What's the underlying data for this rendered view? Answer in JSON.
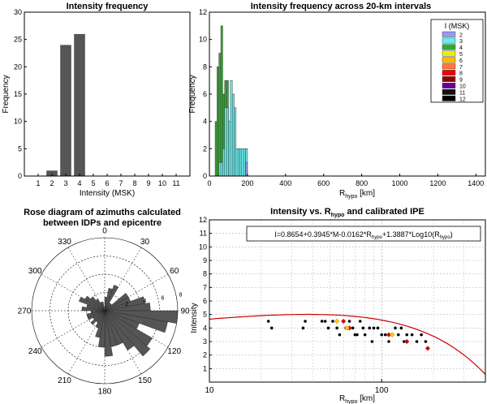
{
  "chart_data": [
    {
      "type": "bar",
      "title": "Intensity frequency",
      "xlabel": "Intensity (MSK)",
      "ylabel": "Frequency",
      "categories": [
        "1",
        "2",
        "3",
        "4",
        "5",
        "6",
        "7",
        "8",
        "9",
        "10",
        "11"
      ],
      "values": [
        0,
        1,
        24,
        26,
        0,
        0,
        0,
        0,
        0,
        0,
        0
      ],
      "ylim": [
        0,
        30
      ],
      "yticks": [
        "0",
        "5",
        "10",
        "15",
        "20",
        "25",
        "30"
      ],
      "color": "#555555"
    },
    {
      "type": "bar",
      "title": "Intensity frequency across 20-km intervals",
      "xlabel_main": "R",
      "xlabel_sub": "hypo",
      "xlabel_unit": " [km]",
      "ylabel": "Frequency",
      "xlim": [
        0,
        1450
      ],
      "ylim": [
        0,
        12
      ],
      "xticks": [
        "0",
        "200",
        "400",
        "600",
        "800",
        "1000",
        "1200",
        "1400"
      ],
      "yticks": [
        "0",
        "2",
        "4",
        "6",
        "8",
        "10",
        "12"
      ],
      "legend_title": "I (MSK)",
      "legend": [
        {
          "label": "2",
          "color": "#9999ee"
        },
        {
          "label": "3",
          "color": "#66eeee"
        },
        {
          "label": "4",
          "color": "#33aa33"
        },
        {
          "label": "5",
          "color": "#eeee00"
        },
        {
          "label": "6",
          "color": "#ffbb00"
        },
        {
          "label": "7",
          "color": "#ff7744"
        },
        {
          "label": "8",
          "color": "#ee0000"
        },
        {
          "label": "9",
          "color": "#990000"
        },
        {
          "label": "10",
          "color": "#660099"
        },
        {
          "label": "11",
          "color": "#111111"
        },
        {
          "label": "12",
          "color": "#000000"
        }
      ],
      "series": [
        {
          "name": "4",
          "color": "#33aa33",
          "x": [
            40,
            50,
            60,
            70,
            80,
            90,
            100,
            110
          ],
          "values": [
            4,
            8,
            9,
            11,
            6,
            7,
            7,
            1
          ]
        },
        {
          "name": "3",
          "color": "#66eeee",
          "x": [
            60,
            70,
            80,
            90,
            100,
            110,
            120,
            130,
            140,
            150,
            160,
            170,
            180,
            190,
            200
          ],
          "values": [
            1,
            1,
            2,
            5,
            5,
            4,
            7,
            6,
            5,
            2,
            2,
            2,
            2,
            2,
            2
          ]
        },
        {
          "name": "2",
          "color": "#9999ee",
          "x": [
            200
          ],
          "values": [
            1
          ]
        }
      ]
    },
    {
      "type": "rose",
      "title": "Rose diagram of azimuths calculated",
      "title2": "between  IDPs and epicentre",
      "angle_labels": [
        "0",
        "30",
        "60",
        "90",
        "120",
        "150",
        "180",
        "210",
        "240",
        "270",
        "300",
        "330"
      ],
      "radial_labels": [
        "2",
        "4",
        "6",
        "8"
      ],
      "rmax": 8,
      "sector_width": 10,
      "petals": [
        {
          "az": 5,
          "r": 1.5
        },
        {
          "az": 15,
          "r": 2.5
        },
        {
          "az": 25,
          "r": 3
        },
        {
          "az": 35,
          "r": 1
        },
        {
          "az": 45,
          "r": 1
        },
        {
          "az": 55,
          "r": 3
        },
        {
          "az": 65,
          "r": 3
        },
        {
          "az": 75,
          "r": 4.5
        },
        {
          "az": 85,
          "r": 5
        },
        {
          "az": 95,
          "r": 8
        },
        {
          "az": 105,
          "r": 7
        },
        {
          "az": 115,
          "r": 4
        },
        {
          "az": 125,
          "r": 6
        },
        {
          "az": 135,
          "r": 6.5
        },
        {
          "az": 145,
          "r": 5
        },
        {
          "az": 155,
          "r": 4
        },
        {
          "az": 165,
          "r": 4
        },
        {
          "az": 175,
          "r": 5
        },
        {
          "az": 185,
          "r": 4
        },
        {
          "az": 195,
          "r": 3
        },
        {
          "az": 205,
          "r": 2
        },
        {
          "az": 215,
          "r": 1.5
        },
        {
          "az": 225,
          "r": 2
        },
        {
          "az": 235,
          "r": 1.5
        },
        {
          "az": 245,
          "r": 2
        },
        {
          "az": 255,
          "r": 2
        },
        {
          "az": 265,
          "r": 1.5
        },
        {
          "az": 275,
          "r": 2.5
        },
        {
          "az": 285,
          "r": 2
        },
        {
          "az": 295,
          "r": 3
        },
        {
          "az": 305,
          "r": 2.5
        },
        {
          "az": 315,
          "r": 2
        },
        {
          "az": 325,
          "r": 1.5
        },
        {
          "az": 335,
          "r": 1
        },
        {
          "az": 345,
          "r": 1
        }
      ]
    },
    {
      "type": "scatter",
      "title_main": "Intensity vs. R",
      "title_sub": "hypo",
      "title_rest": " and calibrated IPE",
      "xlabel_main": "R",
      "xlabel_sub": "hypo",
      "xlabel_unit": " [km]",
      "ylabel": "Intensity",
      "xscale": "log",
      "xlim": [
        10,
        400
      ],
      "ylim": [
        0,
        12
      ],
      "xticks": [
        "10",
        "100"
      ],
      "yticks": [
        "1",
        "2",
        "3",
        "4",
        "5",
        "6",
        "7",
        "8",
        "9",
        "10",
        "11",
        "12"
      ],
      "equation_text_1": "I=0.8654+0.3945*M-0.0162*R",
      "equation_sub_1": "hypo",
      "equation_text_2": "+1.3887*Log10(R",
      "equation_sub_2": "hypo",
      "equation_text_3": ")",
      "curve_color": "#cc0000",
      "points_black": [
        {
          "x": 22,
          "y": 4.5
        },
        {
          "x": 23,
          "y": 4
        },
        {
          "x": 35,
          "y": 4
        },
        {
          "x": 36,
          "y": 4.5
        },
        {
          "x": 45,
          "y": 4.5
        },
        {
          "x": 47,
          "y": 4.5
        },
        {
          "x": 49,
          "y": 4
        },
        {
          "x": 52,
          "y": 4.5
        },
        {
          "x": 55,
          "y": 4
        },
        {
          "x": 57,
          "y": 3.5
        },
        {
          "x": 60,
          "y": 4.5
        },
        {
          "x": 62,
          "y": 4
        },
        {
          "x": 65,
          "y": 4.5
        },
        {
          "x": 68,
          "y": 4
        },
        {
          "x": 70,
          "y": 3.5
        },
        {
          "x": 72,
          "y": 3.5
        },
        {
          "x": 75,
          "y": 4.5
        },
        {
          "x": 78,
          "y": 4
        },
        {
          "x": 80,
          "y": 3.5
        },
        {
          "x": 85,
          "y": 4
        },
        {
          "x": 88,
          "y": 3
        },
        {
          "x": 90,
          "y": 4
        },
        {
          "x": 95,
          "y": 4
        },
        {
          "x": 100,
          "y": 3.5
        },
        {
          "x": 105,
          "y": 3.5
        },
        {
          "x": 110,
          "y": 3
        },
        {
          "x": 115,
          "y": 3.5
        },
        {
          "x": 120,
          "y": 4
        },
        {
          "x": 125,
          "y": 3.5
        },
        {
          "x": 130,
          "y": 4
        },
        {
          "x": 135,
          "y": 3
        },
        {
          "x": 140,
          "y": 3.5
        },
        {
          "x": 150,
          "y": 3.5
        },
        {
          "x": 160,
          "y": 3
        },
        {
          "x": 170,
          "y": 3.5
        },
        {
          "x": 180,
          "y": 3
        }
      ],
      "points_red": [
        {
          "x": 60,
          "y": 4.5
        },
        {
          "x": 65,
          "y": 4
        },
        {
          "x": 110,
          "y": 3.5
        },
        {
          "x": 140,
          "y": 3
        },
        {
          "x": 185,
          "y": 2.5
        }
      ],
      "points_yellow": [
        {
          "x": 55,
          "y": 4.5
        },
        {
          "x": 63,
          "y": 4
        },
        {
          "x": 115,
          "y": 3.5
        }
      ]
    }
  ]
}
